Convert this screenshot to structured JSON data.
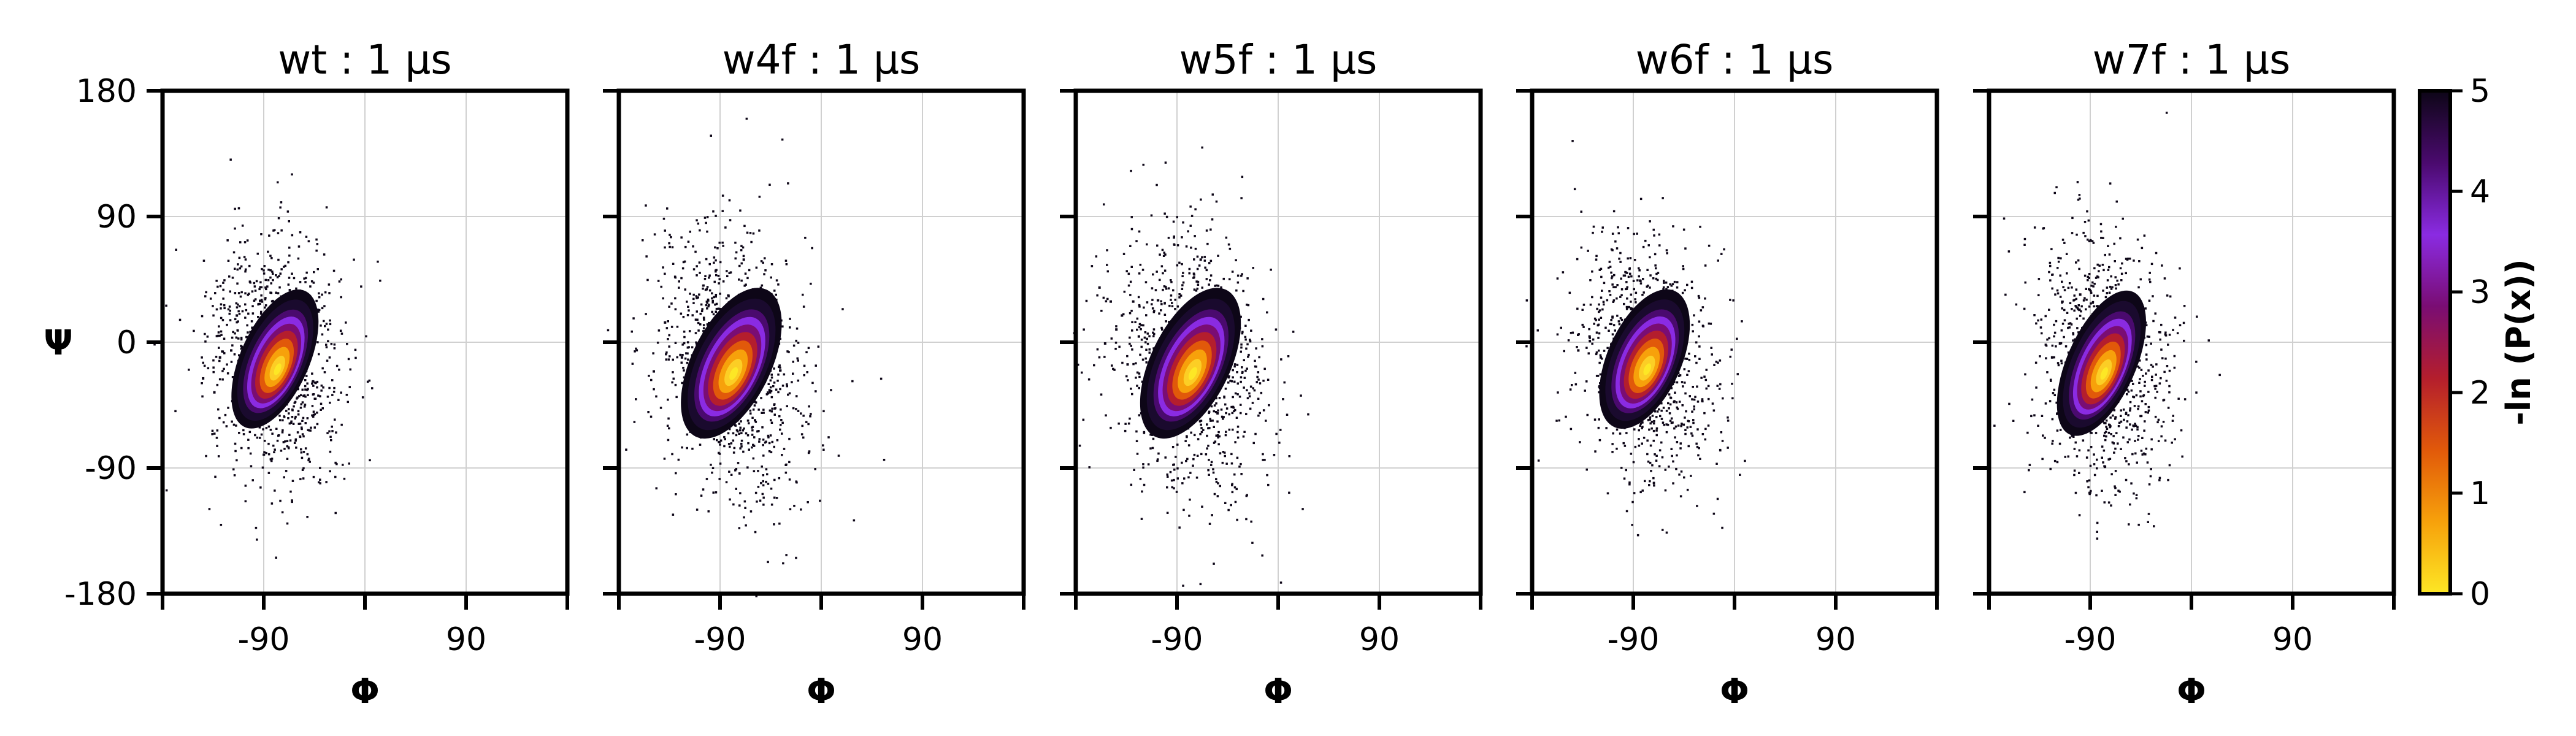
{
  "chart_data": [
    {
      "type": "heatmap",
      "title": "wt : 1 μs",
      "xlabel": "Φ",
      "ylabel": "Ψ",
      "xlim": [
        -180,
        180
      ],
      "ylim": [
        -180,
        180
      ],
      "xticks": [
        -90,
        90
      ],
      "yticks": [
        180,
        90,
        0,
        -90,
        -180
      ],
      "grid": true,
      "density": {
        "center_phi": -80,
        "center_psi": -12,
        "spread_phi": 13,
        "spread_psi": 21,
        "tilt": -0.5,
        "min_level": 0,
        "max_level": 5
      },
      "outliers": [
        [
          -115,
          20
        ],
        [
          -130,
          -10
        ],
        [
          -145,
          -25
        ],
        [
          -135,
          -35
        ],
        [
          -120,
          -5
        ]
      ]
    },
    {
      "type": "heatmap",
      "title": "w4f : 1 μs",
      "xlabel": "Φ",
      "ylabel": "",
      "xlim": [
        -180,
        180
      ],
      "ylim": [
        -180,
        180
      ],
      "xticks": [
        -90,
        90
      ],
      "yticks": [],
      "grid": true,
      "density": {
        "center_phi": -80,
        "center_psi": -15,
        "spread_phi": 15,
        "spread_psi": 23,
        "tilt": -0.55,
        "min_level": 0,
        "max_level": 5
      },
      "outliers": [
        [
          -140,
          15
        ],
        [
          -150,
          -20
        ],
        [
          -125,
          -10
        ],
        [
          -60,
          -55
        ],
        [
          -70,
          60
        ]
      ]
    },
    {
      "type": "heatmap",
      "title": "w5f : 1 μs",
      "xlabel": "Φ",
      "ylabel": "",
      "xlim": [
        -180,
        180
      ],
      "ylim": [
        -180,
        180
      ],
      "xticks": [
        -90,
        90
      ],
      "yticks": [],
      "grid": true,
      "density": {
        "center_phi": -78,
        "center_psi": -15,
        "spread_phi": 15,
        "spread_psi": 23,
        "tilt": -0.55,
        "min_level": 0,
        "max_level": 5
      },
      "outliers": [
        [
          -160,
          40
        ],
        [
          -150,
          30
        ],
        [
          -140,
          20
        ],
        [
          -145,
          10
        ],
        [
          -155,
          0
        ],
        [
          -135,
          -15
        ],
        [
          -130,
          30
        ],
        [
          -125,
          5
        ],
        [
          -70,
          60
        ],
        [
          -55,
          -50
        ]
      ]
    },
    {
      "type": "heatmap",
      "title": "w6f : 1 μs",
      "xlabel": "Φ",
      "ylabel": "",
      "xlim": [
        -180,
        180
      ],
      "ylim": [
        -180,
        180
      ],
      "xticks": [
        -90,
        90
      ],
      "yticks": [],
      "grid": true,
      "density": {
        "center_phi": -80,
        "center_psi": -12,
        "spread_phi": 14,
        "spread_psi": 21,
        "tilt": -0.5,
        "min_level": 0,
        "max_level": 5
      },
      "outliers": [
        [
          -140,
          -5
        ],
        [
          -130,
          5
        ],
        [
          -120,
          -10
        ],
        [
          -85,
          45
        ]
      ]
    },
    {
      "type": "heatmap",
      "title": "w7f : 1 μs",
      "xlabel": "Φ",
      "ylabel": "",
      "xlim": [
        -180,
        180
      ],
      "ylim": [
        -180,
        180
      ],
      "xticks": [
        -90,
        90
      ],
      "yticks": [],
      "grid": true,
      "density": {
        "center_phi": -80,
        "center_psi": -15,
        "spread_phi": 13,
        "spread_psi": 22,
        "tilt": -0.5,
        "min_level": 0,
        "max_level": 5
      },
      "outliers": [
        [
          -125,
          -10
        ],
        [
          -118,
          0
        ],
        [
          -100,
          35
        ]
      ]
    }
  ],
  "colorbar": {
    "label": "-ln (P(x))",
    "min": 0,
    "max": 5,
    "ticks": [
      "0",
      "1",
      "2",
      "3",
      "4",
      "5"
    ],
    "colors": [
      "#fde725",
      "#f7a10b",
      "#e1590a",
      "#b41e2d",
      "#7a0d73",
      "#8a2be2",
      "#4a0a6e",
      "#0d0617"
    ]
  }
}
